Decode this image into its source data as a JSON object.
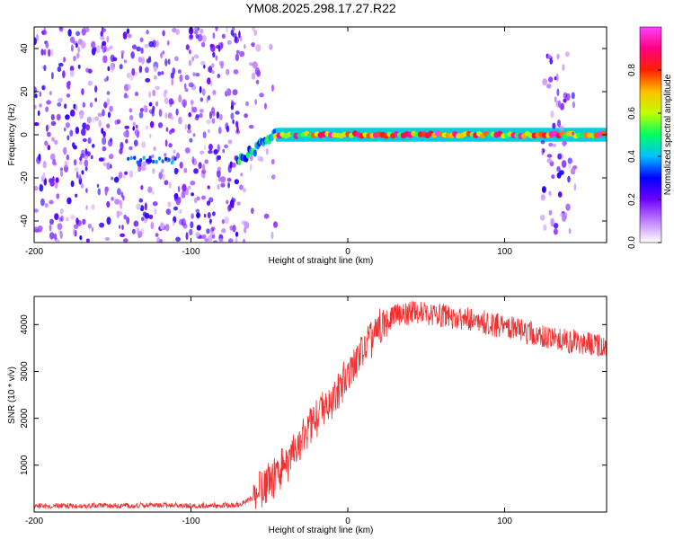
{
  "title": "YM08.2025.298.17.27.R22",
  "chart_data": [
    {
      "type": "heatmap",
      "xlabel": "Height of straight line (km)",
      "ylabel": "Frequency (Hz)",
      "xlim": [
        -200,
        165
      ],
      "ylim": [
        -50,
        50
      ],
      "xticks": [
        -200,
        -100,
        0,
        100
      ],
      "yticks": [
        -40,
        -20,
        0,
        20,
        40
      ],
      "colorbar": {
        "label": "Normalized spectral amplitude",
        "range": [
          0,
          1
        ],
        "ticks": [
          0.0,
          0.2,
          0.4,
          0.6,
          0.8
        ],
        "tick_labels": [
          "0.0",
          "0.2",
          "0.4",
          "0.6",
          "0.8"
        ],
        "colors": [
          "#ffffff",
          "#c080ff",
          "#7000ff",
          "#0000ff",
          "#00c0ff",
          "#00ff60",
          "#c0ff00",
          "#ffc000",
          "#ff2000",
          "#ff0080",
          "#ff40ff"
        ]
      },
      "regions": [
        {
          "name": "diffuse noise",
          "x_range": [
            -200,
            -70
          ],
          "freq_range": [
            -50,
            50
          ],
          "amplitude": 0.15
        },
        {
          "name": "fading noise",
          "x_range": [
            -70,
            -46
          ],
          "freq_range": [
            -50,
            50
          ],
          "amplitude": 0.1
        },
        {
          "name": "onset",
          "x_range": [
            -70,
            -46
          ],
          "center_freq": [
            -12,
            0
          ],
          "amplitude": 0.35
        },
        {
          "name": "stable line",
          "x_range": [
            -46,
            165
          ],
          "center_freq": 0,
          "amplitude": 1.0
        },
        {
          "name": "disturbance",
          "x_range": [
            124,
            145
          ],
          "freq_range": [
            -45,
            38
          ],
          "amplitude": 0.15
        }
      ]
    },
    {
      "type": "line",
      "xlabel": "Height of straight line (km)",
      "ylabel": "SNR (10 * v/v)",
      "xlim": [
        -200,
        165
      ],
      "ylim": [
        0,
        4600
      ],
      "xticks": [
        -200,
        -100,
        0,
        100
      ],
      "yticks": [
        1000,
        2000,
        3000,
        4000
      ],
      "color": "#f03030",
      "series": [
        {
          "name": "SNR",
          "x": [
            -200,
            -150,
            -100,
            -70,
            -60,
            -50,
            -40,
            -30,
            -20,
            -10,
            0,
            10,
            20,
            25,
            30,
            40,
            50,
            60,
            80,
            100,
            120,
            140,
            165
          ],
          "values": [
            130,
            140,
            135,
            150,
            300,
            650,
            1000,
            1500,
            2000,
            2400,
            2900,
            3500,
            3950,
            4100,
            4200,
            4250,
            4250,
            4200,
            4100,
            3950,
            3800,
            3650,
            3550
          ]
        }
      ]
    }
  ]
}
